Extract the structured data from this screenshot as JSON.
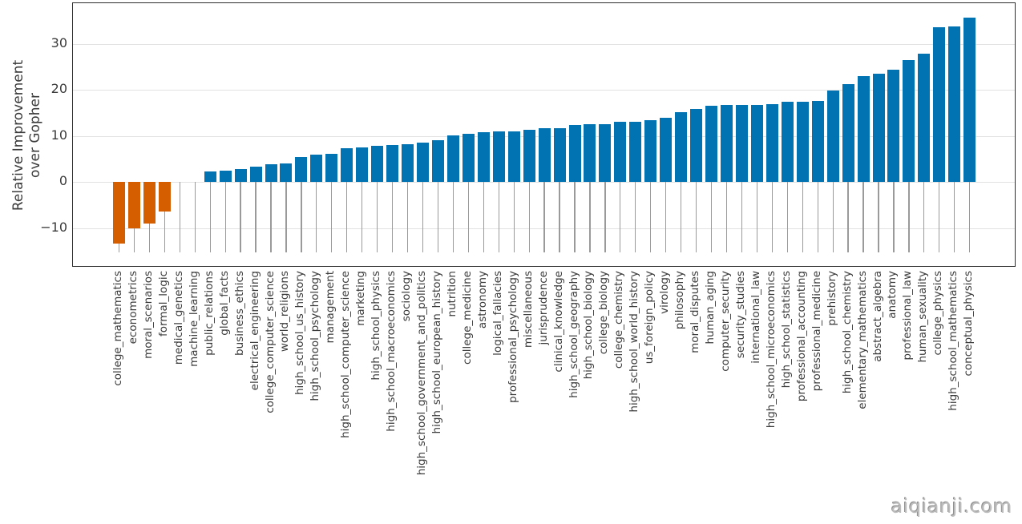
{
  "watermark": "aiqianji.com",
  "chart_data": {
    "type": "bar",
    "title": "",
    "xlabel": "",
    "ylabel": "Relative Improvement over Gopher",
    "ylabel_lines": [
      "Relative Improvement",
      "over Gopher"
    ],
    "ylim": [
      -18.6,
      38.8
    ],
    "grid": "horizontal",
    "legend": null,
    "ytick_labels": [
      "30",
      "20",
      "10",
      "0",
      "−10"
    ],
    "ytick_values": [
      30,
      20,
      10,
      0,
      -10
    ],
    "bar_color_positive": "#0173b2",
    "bar_color_negative": "#d55e00",
    "whisker_color": "#9a9a9a",
    "whisker_bottom_value": -15.3,
    "categories": [
      "college_mathematics",
      "econometrics",
      "moral_scenarios",
      "formal_logic",
      "medical_genetics",
      "machine_learning",
      "public_relations",
      "global_facts",
      "business_ethics",
      "electrical_engineering",
      "college_computer_science",
      "world_religions",
      "high_school_us_history",
      "high_school_psychology",
      "management",
      "high_school_computer_science",
      "marketing",
      "high_school_physics",
      "high_school_macroeconomics",
      "sociology",
      "high_school_government_and_politics",
      "high_school_european_history",
      "nutrition",
      "college_medicine",
      "astronomy",
      "logical_fallacies",
      "professional_psychology",
      "miscellaneous",
      "jurisprudence",
      "clinical_knowledge",
      "high_school_geography",
      "high_school_biology",
      "college_biology",
      "college_chemistry",
      "high_school_world_history",
      "us_foreign_policy",
      "virology",
      "philosophy",
      "moral_disputes",
      "human_aging",
      "computer_security",
      "security_studies",
      "international_law",
      "high_school_microeconomics",
      "high_school_statistics",
      "professional_accounting",
      "professional_medicine",
      "prehistory",
      "high_school_chemistry",
      "elementary_mathematics",
      "abstract_algebra",
      "anatomy",
      "professional_law",
      "human_sexuality",
      "college_physics",
      "high_school_mathematics",
      "conceptual_physics"
    ],
    "values": [
      -13.3,
      -10.0,
      -9.0,
      -6.4,
      0.0,
      0.0,
      2.3,
      2.5,
      2.9,
      3.3,
      3.9,
      4.1,
      5.5,
      5.9,
      6.2,
      7.4,
      7.6,
      7.8,
      8.0,
      8.2,
      8.5,
      9.0,
      10.1,
      10.4,
      10.9,
      11.0,
      11.0,
      11.4,
      11.6,
      11.7,
      12.4,
      12.5,
      12.6,
      13.0,
      13.1,
      13.4,
      13.9,
      15.1,
      15.8,
      16.6,
      16.7,
      16.7,
      16.8,
      16.9,
      17.4,
      17.4,
      17.6,
      19.8,
      21.2,
      23.0,
      23.5,
      24.4,
      26.5,
      27.9,
      33.6,
      33.8,
      35.6
    ]
  }
}
